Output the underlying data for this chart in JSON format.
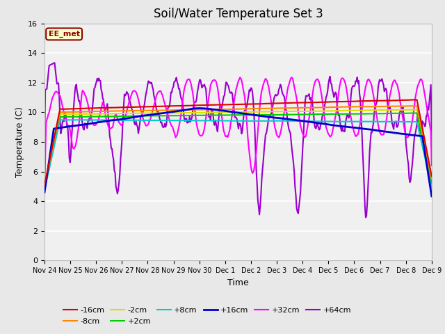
{
  "title": "Soil/Water Temperature Set 3",
  "xlabel": "Time",
  "ylabel": "Temperature (C)",
  "ylim": [
    0,
    16
  ],
  "yticks": [
    0,
    2,
    4,
    6,
    8,
    10,
    12,
    14,
    16
  ],
  "fig_bg_color": "#e8e8e8",
  "plot_bg_color": "#f0f0f0",
  "annotation_text": "EE_met",
  "annotation_box_color": "#ffffcc",
  "annotation_border_color": "#8b0000",
  "series": {
    "-16cm": {
      "color": "#dd0000",
      "lw": 1.5
    },
    "-8cm": {
      "color": "#ff8800",
      "lw": 1.5
    },
    "-2cm": {
      "color": "#dddd00",
      "lw": 1.5
    },
    "+2cm": {
      "color": "#00cc00",
      "lw": 1.5
    },
    "+8cm": {
      "color": "#00cccc",
      "lw": 1.5
    },
    "+16cm": {
      "color": "#0000cc",
      "lw": 2.0
    },
    "+32cm": {
      "color": "#ff00ff",
      "lw": 1.5
    },
    "+64cm": {
      "color": "#9900cc",
      "lw": 1.5
    }
  },
  "xtick_labels": [
    "Nov 24",
    "Nov 25",
    "Nov 26",
    "Nov 27",
    "Nov 28",
    "Nov 29",
    "Nov 30",
    "Dec 1",
    "Dec 2",
    "Dec 3",
    "Dec 4",
    "Dec 5",
    "Dec 6",
    "Dec 7",
    "Dec 8",
    "Dec 9"
  ],
  "n_points": 500,
  "seed": 42
}
